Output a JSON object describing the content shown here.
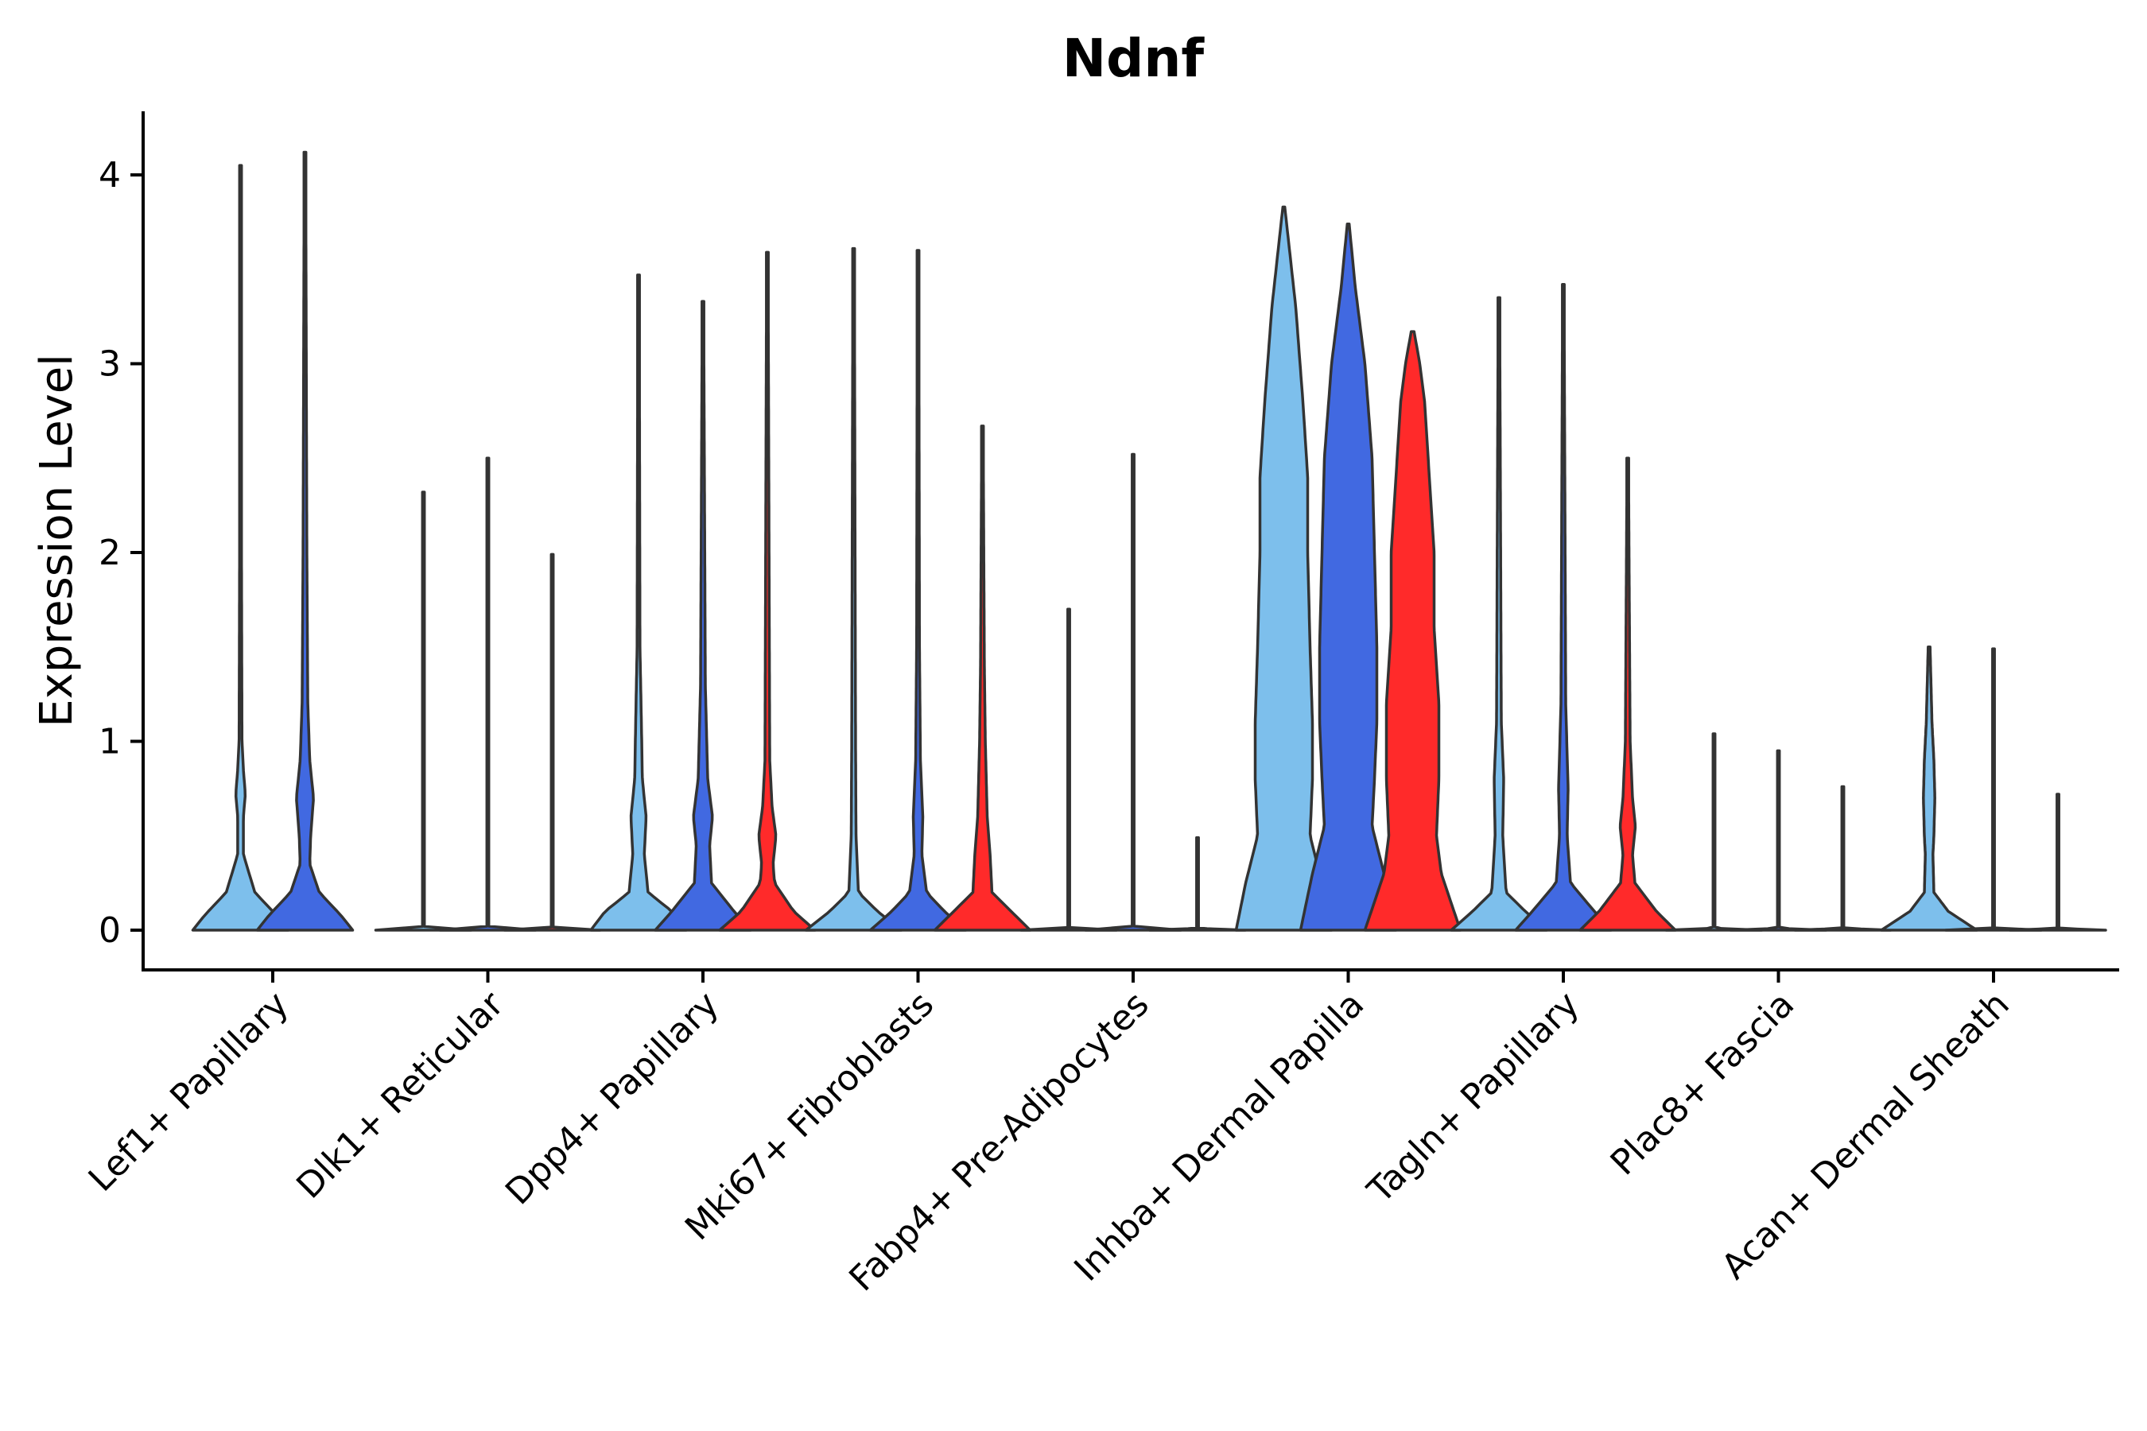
{
  "chart_data": {
    "type": "violin",
    "title": "Ndnf",
    "xlabel": "",
    "ylabel": "Expression Level",
    "ylim": [
      -0.2,
      4.3
    ],
    "yticks": [
      0,
      1,
      2,
      3,
      4
    ],
    "legend": "none",
    "series_colors": [
      "#7dbfec",
      "#4169e1",
      "#ff2a2a"
    ],
    "categories": [
      "Lef1+ Papillary",
      "Dlk1+ Reticular",
      "Dpp4+ Papillary",
      "Mki67+ Fibroblasts",
      "Fabp4+ Pre-Adipocytes",
      "Inhba+ Dermal Papilla",
      "Tagln+ Papillary",
      "Plac8+ Fascia",
      "Acan+ Dermal Sheath"
    ],
    "groups": [
      {
        "category": "Lef1+ Papillary",
        "violins": [
          {
            "series": 0,
            "max": 4.05,
            "profile": [
              [
                0,
                1.0
              ],
              [
                0.08,
                0.75
              ],
              [
                0.2,
                0.3
              ],
              [
                0.4,
                0.06
              ],
              [
                0.6,
                0.06
              ],
              [
                0.72,
                0.1
              ],
              [
                0.85,
                0.06
              ],
              [
                1.0,
                0.03
              ],
              [
                2.0,
                0.02
              ],
              [
                4.05,
                0.015
              ]
            ]
          },
          {
            "series": 1,
            "max": 4.12,
            "profile": [
              [
                0,
                1.0
              ],
              [
                0.08,
                0.75
              ],
              [
                0.2,
                0.3
              ],
              [
                0.35,
                0.1
              ],
              [
                0.5,
                0.12
              ],
              [
                0.7,
                0.18
              ],
              [
                0.9,
                0.1
              ],
              [
                1.2,
                0.06
              ],
              [
                2.0,
                0.04
              ],
              [
                4.12,
                0.015
              ]
            ]
          }
        ]
      },
      {
        "category": "Dlk1+ Reticular",
        "violins": [
          {
            "series": 0,
            "max": 2.32,
            "profile": [
              [
                0,
                1.0
              ],
              [
                0.01,
                0.02
              ],
              [
                2.32,
                0.015
              ]
            ]
          },
          {
            "series": 1,
            "max": 2.5,
            "profile": [
              [
                0,
                1.0
              ],
              [
                0.01,
                0.02
              ],
              [
                2.5,
                0.015
              ]
            ]
          },
          {
            "series": 2,
            "max": 1.99,
            "profile": [
              [
                0,
                1.0
              ],
              [
                0.01,
                0.02
              ],
              [
                1.99,
                0.015
              ]
            ]
          }
        ]
      },
      {
        "category": "Dpp4+ Papillary",
        "violins": [
          {
            "series": 0,
            "max": 3.47,
            "profile": [
              [
                0,
                1.0
              ],
              [
                0.1,
                0.7
              ],
              [
                0.2,
                0.2
              ],
              [
                0.4,
                0.12
              ],
              [
                0.6,
                0.16
              ],
              [
                0.8,
                0.08
              ],
              [
                1.1,
                0.06
              ],
              [
                1.5,
                0.03
              ],
              [
                3.47,
                0.015
              ]
            ]
          },
          {
            "series": 1,
            "max": 3.33,
            "profile": [
              [
                0,
                1.0
              ],
              [
                0.1,
                0.65
              ],
              [
                0.25,
                0.18
              ],
              [
                0.45,
                0.14
              ],
              [
                0.6,
                0.2
              ],
              [
                0.8,
                0.1
              ],
              [
                1.3,
                0.05
              ],
              [
                3.33,
                0.015
              ]
            ]
          },
          {
            "series": 2,
            "max": 3.59,
            "profile": [
              [
                0,
                1.0
              ],
              [
                0.1,
                0.55
              ],
              [
                0.25,
                0.15
              ],
              [
                0.35,
                0.12
              ],
              [
                0.5,
                0.18
              ],
              [
                0.65,
                0.1
              ],
              [
                0.9,
                0.05
              ],
              [
                3.59,
                0.015
              ]
            ]
          }
        ]
      },
      {
        "category": "Mki67+ Fibroblasts",
        "violins": [
          {
            "series": 0,
            "max": 3.61,
            "profile": [
              [
                0,
                1.0
              ],
              [
                0.1,
                0.5
              ],
              [
                0.2,
                0.1
              ],
              [
                0.5,
                0.05
              ],
              [
                1.0,
                0.04
              ],
              [
                3.61,
                0.015
              ]
            ]
          },
          {
            "series": 1,
            "max": 3.6,
            "profile": [
              [
                0,
                1.0
              ],
              [
                0.1,
                0.55
              ],
              [
                0.2,
                0.18
              ],
              [
                0.4,
                0.08
              ],
              [
                0.6,
                0.1
              ],
              [
                0.9,
                0.05
              ],
              [
                1.5,
                0.03
              ],
              [
                3.6,
                0.015
              ]
            ]
          },
          {
            "series": 2,
            "max": 2.67,
            "profile": [
              [
                0,
                1.0
              ],
              [
                0.1,
                0.6
              ],
              [
                0.2,
                0.2
              ],
              [
                0.4,
                0.16
              ],
              [
                0.6,
                0.1
              ],
              [
                1.0,
                0.06
              ],
              [
                1.4,
                0.04
              ],
              [
                2.67,
                0.015
              ]
            ]
          }
        ]
      },
      {
        "category": "Fabp4+ Pre-Adipocytes",
        "violins": [
          {
            "series": 0,
            "max": 1.7,
            "profile": [
              [
                0,
                1.0
              ],
              [
                0.01,
                0.02
              ],
              [
                1.7,
                0.015
              ]
            ]
          },
          {
            "series": 1,
            "max": 2.52,
            "profile": [
              [
                0,
                1.0
              ],
              [
                0.01,
                0.02
              ],
              [
                2.52,
                0.015
              ]
            ]
          },
          {
            "series": 2,
            "max": 0.49,
            "profile": [
              [
                0,
                1.0
              ],
              [
                0.01,
                0.02
              ],
              [
                0.49,
                0.015
              ]
            ]
          }
        ]
      },
      {
        "category": "Inhba+ Dermal Papilla",
        "violins": [
          {
            "series": 0,
            "max": 3.83,
            "profile": [
              [
                0,
                1.0
              ],
              [
                0.25,
                0.8
              ],
              [
                0.5,
                0.55
              ],
              [
                0.8,
                0.6
              ],
              [
                1.1,
                0.6
              ],
              [
                1.5,
                0.55
              ],
              [
                2.0,
                0.5
              ],
              [
                2.4,
                0.5
              ],
              [
                2.8,
                0.4
              ],
              [
                3.3,
                0.25
              ],
              [
                3.6,
                0.12
              ],
              [
                3.83,
                0.02
              ]
            ]
          },
          {
            "series": 1,
            "max": 3.74,
            "profile": [
              [
                0,
                1.0
              ],
              [
                0.3,
                0.75
              ],
              [
                0.55,
                0.5
              ],
              [
                0.8,
                0.55
              ],
              [
                1.1,
                0.6
              ],
              [
                1.5,
                0.6
              ],
              [
                2.0,
                0.55
              ],
              [
                2.5,
                0.5
              ],
              [
                3.0,
                0.35
              ],
              [
                3.4,
                0.15
              ],
              [
                3.74,
                0.02
              ]
            ]
          },
          {
            "series": 2,
            "max": 3.17,
            "profile": [
              [
                0,
                1.0
              ],
              [
                0.3,
                0.6
              ],
              [
                0.5,
                0.5
              ],
              [
                0.8,
                0.55
              ],
              [
                1.2,
                0.55
              ],
              [
                1.6,
                0.45
              ],
              [
                2.0,
                0.45
              ],
              [
                2.4,
                0.35
              ],
              [
                2.8,
                0.25
              ],
              [
                3.0,
                0.15
              ],
              [
                3.17,
                0.03
              ]
            ]
          }
        ]
      },
      {
        "category": "Tagln+ Papillary",
        "violins": [
          {
            "series": 0,
            "max": 3.35,
            "profile": [
              [
                0,
                1.0
              ],
              [
                0.1,
                0.55
              ],
              [
                0.2,
                0.15
              ],
              [
                0.5,
                0.08
              ],
              [
                0.8,
                0.1
              ],
              [
                1.1,
                0.05
              ],
              [
                3.35,
                0.015
              ]
            ]
          },
          {
            "series": 1,
            "max": 3.42,
            "profile": [
              [
                0,
                1.0
              ],
              [
                0.1,
                0.65
              ],
              [
                0.25,
                0.15
              ],
              [
                0.5,
                0.08
              ],
              [
                0.75,
                0.1
              ],
              [
                1.2,
                0.05
              ],
              [
                3.42,
                0.015
              ]
            ]
          },
          {
            "series": 2,
            "max": 2.5,
            "profile": [
              [
                0,
                1.0
              ],
              [
                0.1,
                0.6
              ],
              [
                0.25,
                0.15
              ],
              [
                0.4,
                0.1
              ],
              [
                0.55,
                0.16
              ],
              [
                0.7,
                0.1
              ],
              [
                1.0,
                0.05
              ],
              [
                2.5,
                0.015
              ]
            ]
          }
        ]
      },
      {
        "category": "Plac8+ Fascia",
        "violins": [
          {
            "series": 0,
            "max": 1.04,
            "profile": [
              [
                0,
                1.0
              ],
              [
                0.01,
                0.02
              ],
              [
                1.04,
                0.015
              ]
            ]
          },
          {
            "series": 1,
            "max": 0.95,
            "profile": [
              [
                0,
                1.0
              ],
              [
                0.01,
                0.02
              ],
              [
                0.95,
                0.015
              ]
            ]
          },
          {
            "series": 2,
            "max": 0.76,
            "profile": [
              [
                0,
                1.0
              ],
              [
                0.01,
                0.02
              ],
              [
                0.76,
                0.015
              ]
            ]
          }
        ]
      },
      {
        "category": "Acan+ Dermal Sheath",
        "violins": [
          {
            "series": 0,
            "max": 1.5,
            "profile": [
              [
                0,
                1.0
              ],
              [
                0.1,
                0.4
              ],
              [
                0.2,
                0.1
              ],
              [
                0.4,
                0.08
              ],
              [
                0.5,
                0.1
              ],
              [
                0.7,
                0.12
              ],
              [
                0.9,
                0.1
              ],
              [
                1.1,
                0.06
              ],
              [
                1.5,
                0.02
              ]
            ]
          },
          {
            "series": 1,
            "max": 1.49,
            "profile": [
              [
                0,
                1.0
              ],
              [
                0.01,
                0.02
              ],
              [
                1.49,
                0.015
              ]
            ]
          },
          {
            "series": 2,
            "max": 0.72,
            "profile": [
              [
                0,
                1.0
              ],
              [
                0.01,
                0.02
              ],
              [
                0.72,
                0.015
              ]
            ]
          }
        ]
      }
    ]
  }
}
